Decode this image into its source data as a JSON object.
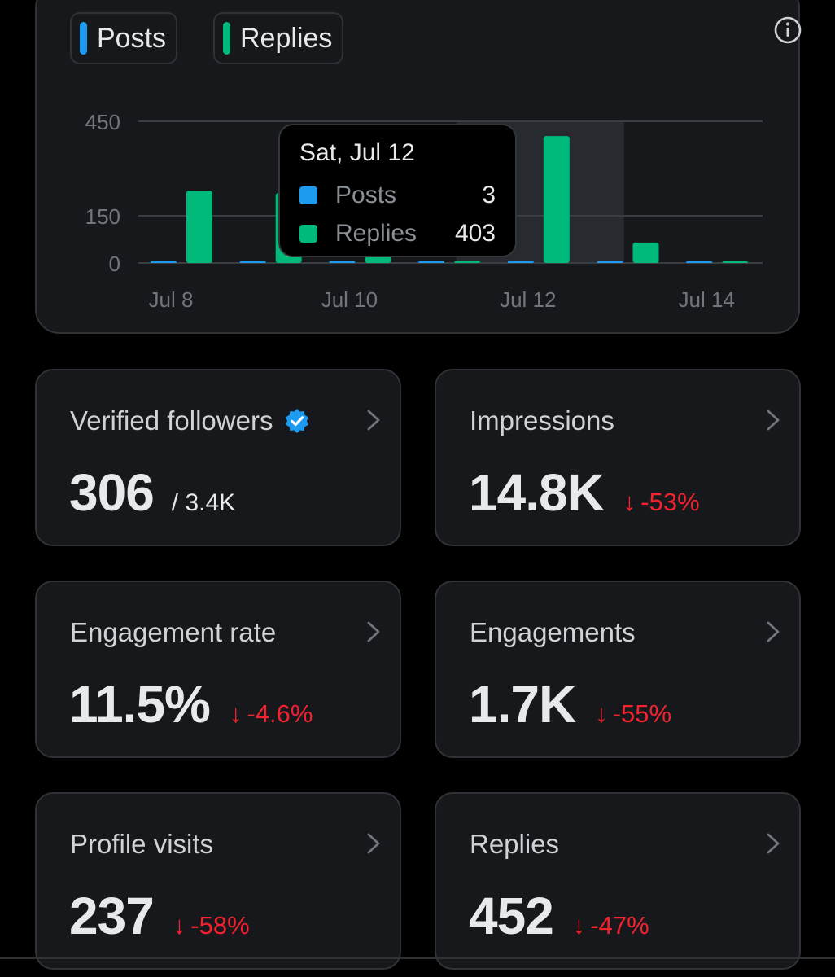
{
  "colors": {
    "posts": "#1d9bf0",
    "replies": "#00ba7c",
    "negative": "#f4212e"
  },
  "legend": {
    "posts_label": "Posts",
    "replies_label": "Replies"
  },
  "chart_data": {
    "type": "bar",
    "categories": [
      "Jul 8",
      "Jul 9",
      "Jul 10",
      "Jul 11",
      "Jul 12",
      "Jul 13",
      "Jul 14"
    ],
    "tick_labels": [
      "Jul 8",
      "Jul 10",
      "Jul 12",
      "Jul 14"
    ],
    "y_ticks": [
      "450",
      "150",
      "0"
    ],
    "ylim": [
      0,
      450
    ],
    "series": [
      {
        "name": "Posts",
        "values": [
          1,
          1,
          1,
          1,
          3,
          1,
          0
        ]
      },
      {
        "name": "Replies",
        "values": [
          230,
          222,
          20,
          6,
          403,
          65,
          5
        ]
      }
    ],
    "highlighted": "Jul 12",
    "grid": true
  },
  "tooltip": {
    "date": "Sat, Jul 12",
    "posts_label": "Posts",
    "posts_value": "3",
    "replies_label": "Replies",
    "replies_value": "403"
  },
  "cards": {
    "verified": {
      "title": "Verified followers",
      "value": "306",
      "sub": "/ 3.4K",
      "icon": "verified-badge-icon"
    },
    "impressions": {
      "title": "Impressions",
      "value": "14.8K",
      "change": "-53%"
    },
    "engagement_rate": {
      "title": "Engagement rate",
      "value": "11.5%",
      "change": "-4.6%"
    },
    "engagements": {
      "title": "Engagements",
      "value": "1.7K",
      "change": "-55%"
    },
    "profile_visits": {
      "title": "Profile visits",
      "value": "237",
      "change": "-58%"
    },
    "replies": {
      "title": "Replies",
      "value": "452",
      "change": "-47%"
    }
  },
  "change_arrow": "↓"
}
